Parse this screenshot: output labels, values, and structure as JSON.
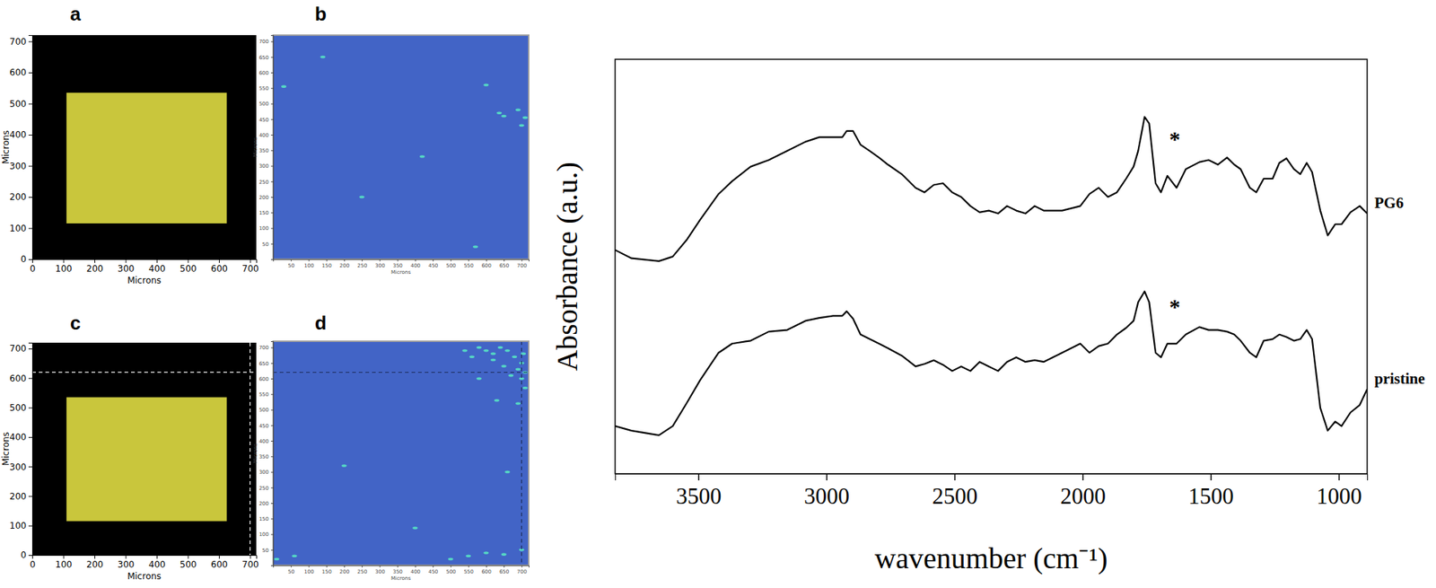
{
  "chart_data": [
    {
      "type": "image",
      "title": "a",
      "xlabel": "Microns",
      "ylabel": "Microns",
      "xlim": [
        0,
        720
      ],
      "ylim": [
        0,
        720
      ],
      "xticks": [
        0,
        100,
        200,
        300,
        400,
        500,
        600,
        700
      ],
      "yticks": [
        0,
        100,
        200,
        300,
        400,
        500,
        600,
        700
      ],
      "rect": {
        "x": [
          110,
          625
        ],
        "y": [
          115,
          535
        ]
      },
      "color": "#c9c63c"
    },
    {
      "type": "image",
      "title": "b",
      "xlabel": "Microns",
      "ylabel": "Microns",
      "xlim": [
        0,
        720
      ],
      "ylim": [
        0,
        720
      ],
      "xticks": [
        50,
        100,
        150,
        200,
        250,
        300,
        350,
        400,
        450,
        500,
        550,
        600,
        650,
        700
      ],
      "yticks": [
        50,
        100,
        150,
        200,
        250,
        300,
        350,
        400,
        450,
        500,
        550,
        600,
        650,
        700
      ],
      "color": "#4264c6",
      "x": [
        637,
        650,
        690,
        30,
        140,
        420,
        570,
        700,
        710,
        600,
        250
      ],
      "y": [
        470,
        460,
        480,
        555,
        650,
        330,
        40,
        430,
        455,
        560,
        200
      ]
    },
    {
      "type": "image",
      "title": "c",
      "xlabel": "Microns",
      "ylabel": "Microns",
      "xlim": [
        0,
        720
      ],
      "ylim": [
        0,
        720
      ],
      "xticks": [
        0,
        100,
        200,
        300,
        400,
        500,
        600,
        700
      ],
      "yticks": [
        0,
        100,
        200,
        300,
        400,
        500,
        600,
        700
      ],
      "rect": {
        "x": [
          110,
          625
        ],
        "y": [
          115,
          535
        ]
      },
      "color": "#c9c63c",
      "cursor": {
        "x": 700,
        "y": 620
      }
    },
    {
      "type": "image",
      "title": "d",
      "xlabel": "Microns",
      "ylabel": "Microns",
      "xlim": [
        0,
        720
      ],
      "ylim": [
        0,
        720
      ],
      "xticks": [
        50,
        100,
        150,
        200,
        250,
        300,
        350,
        400,
        450,
        500,
        550,
        600,
        650,
        700
      ],
      "yticks": [
        50,
        100,
        150,
        200,
        250,
        300,
        350,
        400,
        450,
        500,
        550,
        600,
        650,
        700
      ],
      "color": "#4264c6",
      "x": [
        600,
        620,
        640,
        660,
        680,
        700,
        690,
        710,
        650,
        620,
        580,
        700,
        670,
        710,
        540,
        560,
        10,
        60,
        600,
        650,
        700,
        550,
        500,
        660,
        200,
        400,
        630,
        690,
        580,
        705
      ],
      "y": [
        690,
        680,
        700,
        690,
        670,
        650,
        630,
        620,
        640,
        660,
        700,
        600,
        610,
        570,
        690,
        670,
        20,
        30,
        40,
        35,
        50,
        30,
        20,
        300,
        320,
        120,
        530,
        520,
        600,
        680
      ],
      "cursor": {
        "x": 700,
        "y": 620
      }
    },
    {
      "type": "line",
      "xlabel": "wavenumber (cm⁻¹)",
      "ylabel": "Absorbance (a.u.)",
      "xlim": [
        3825,
        889
      ],
      "ylim": [
        0,
        100
      ],
      "xticks": [
        3500,
        3000,
        2500,
        2000,
        1500,
        1000
      ],
      "tick_labels": "x",
      "x": [
        3825,
        3761,
        3654,
        3600,
        3546,
        3493,
        3421,
        3368,
        3296,
        3225,
        3153,
        3082,
        3028,
        2974,
        2938,
        2921,
        2896,
        2867,
        2831,
        2795,
        2760,
        2706,
        2652,
        2617,
        2581,
        2545,
        2509,
        2474,
        2438,
        2402,
        2366,
        2330,
        2295,
        2259,
        2223,
        2187,
        2152,
        2080,
        2009,
        1973,
        1937,
        1901,
        1866,
        1830,
        1801,
        1783,
        1758,
        1740,
        1715,
        1694,
        1669,
        1633,
        1597,
        1544,
        1508,
        1472,
        1436,
        1408,
        1383,
        1347,
        1322,
        1293,
        1258,
        1232,
        1204,
        1175,
        1150,
        1125,
        1104,
        1072,
        1043,
        1014,
        989,
        954,
        918,
        889
      ],
      "series": [
        {
          "name": "PG6",
          "color": "#000000",
          "values": [
            54.0,
            52.0,
            51.3,
            52.4,
            56.4,
            61.3,
            67.5,
            70.6,
            74.1,
            75.7,
            77.9,
            80.1,
            81.2,
            81.2,
            81.2,
            82.7,
            82.7,
            79.4,
            77.9,
            76.3,
            74.6,
            72.3,
            69.0,
            67.9,
            69.7,
            70.1,
            67.9,
            66.8,
            64.6,
            63.1,
            63.5,
            62.8,
            64.6,
            63.5,
            62.8,
            64.6,
            63.5,
            63.5,
            64.6,
            67.5,
            69.0,
            66.8,
            67.9,
            71.2,
            74.1,
            77.9,
            86.1,
            84.5,
            70.1,
            67.9,
            71.9,
            69.0,
            73.5,
            75.2,
            75.7,
            74.6,
            76.3,
            74.6,
            73.5,
            69.0,
            67.9,
            71.2,
            71.2,
            75.0,
            76.1,
            73.5,
            72.3,
            75.0,
            72.8,
            63.5,
            57.5,
            60.2,
            60.2,
            63.1,
            64.6,
            62.8
          ]
        },
        {
          "name": "pristine",
          "color": "#000000",
          "values": [
            11.5,
            10.4,
            9.3,
            11.5,
            17.0,
            22.6,
            29.2,
            31.4,
            32.1,
            34.3,
            34.7,
            36.9,
            37.6,
            38.1,
            38.1,
            39.2,
            37.4,
            33.6,
            32.5,
            31.4,
            30.3,
            28.5,
            25.9,
            26.5,
            27.4,
            26.3,
            24.8,
            25.9,
            24.8,
            27.0,
            25.9,
            24.8,
            27.0,
            28.1,
            27.0,
            27.4,
            27.0,
            29.2,
            31.4,
            29.2,
            30.8,
            31.4,
            33.6,
            35.2,
            36.9,
            41.4,
            44.0,
            41.4,
            29.2,
            28.1,
            31.4,
            31.4,
            33.6,
            35.4,
            34.7,
            34.7,
            34.3,
            33.6,
            32.1,
            29.2,
            28.1,
            32.1,
            32.5,
            33.6,
            33.0,
            32.1,
            32.5,
            34.7,
            32.5,
            15.9,
            10.4,
            12.6,
            11.5,
            14.8,
            16.6,
            20.4
          ]
        }
      ],
      "annotations": [
        {
          "text": "*",
          "x": 1640,
          "y": 79.0
        },
        {
          "text": "*",
          "x": 1640,
          "y": 38.5
        }
      ]
    }
  ]
}
